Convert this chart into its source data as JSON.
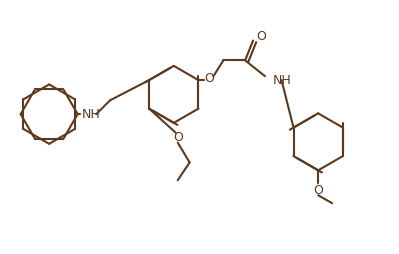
{
  "line_color": "#5C3A1E",
  "background": "#FFFFFF",
  "line_width": 1.5,
  "font_size": 9,
  "labels": {
    "NH_left": "NH",
    "O_ethoxy": "O",
    "O_link": "O",
    "NH_right": "NH",
    "O_methoxy": "O"
  }
}
